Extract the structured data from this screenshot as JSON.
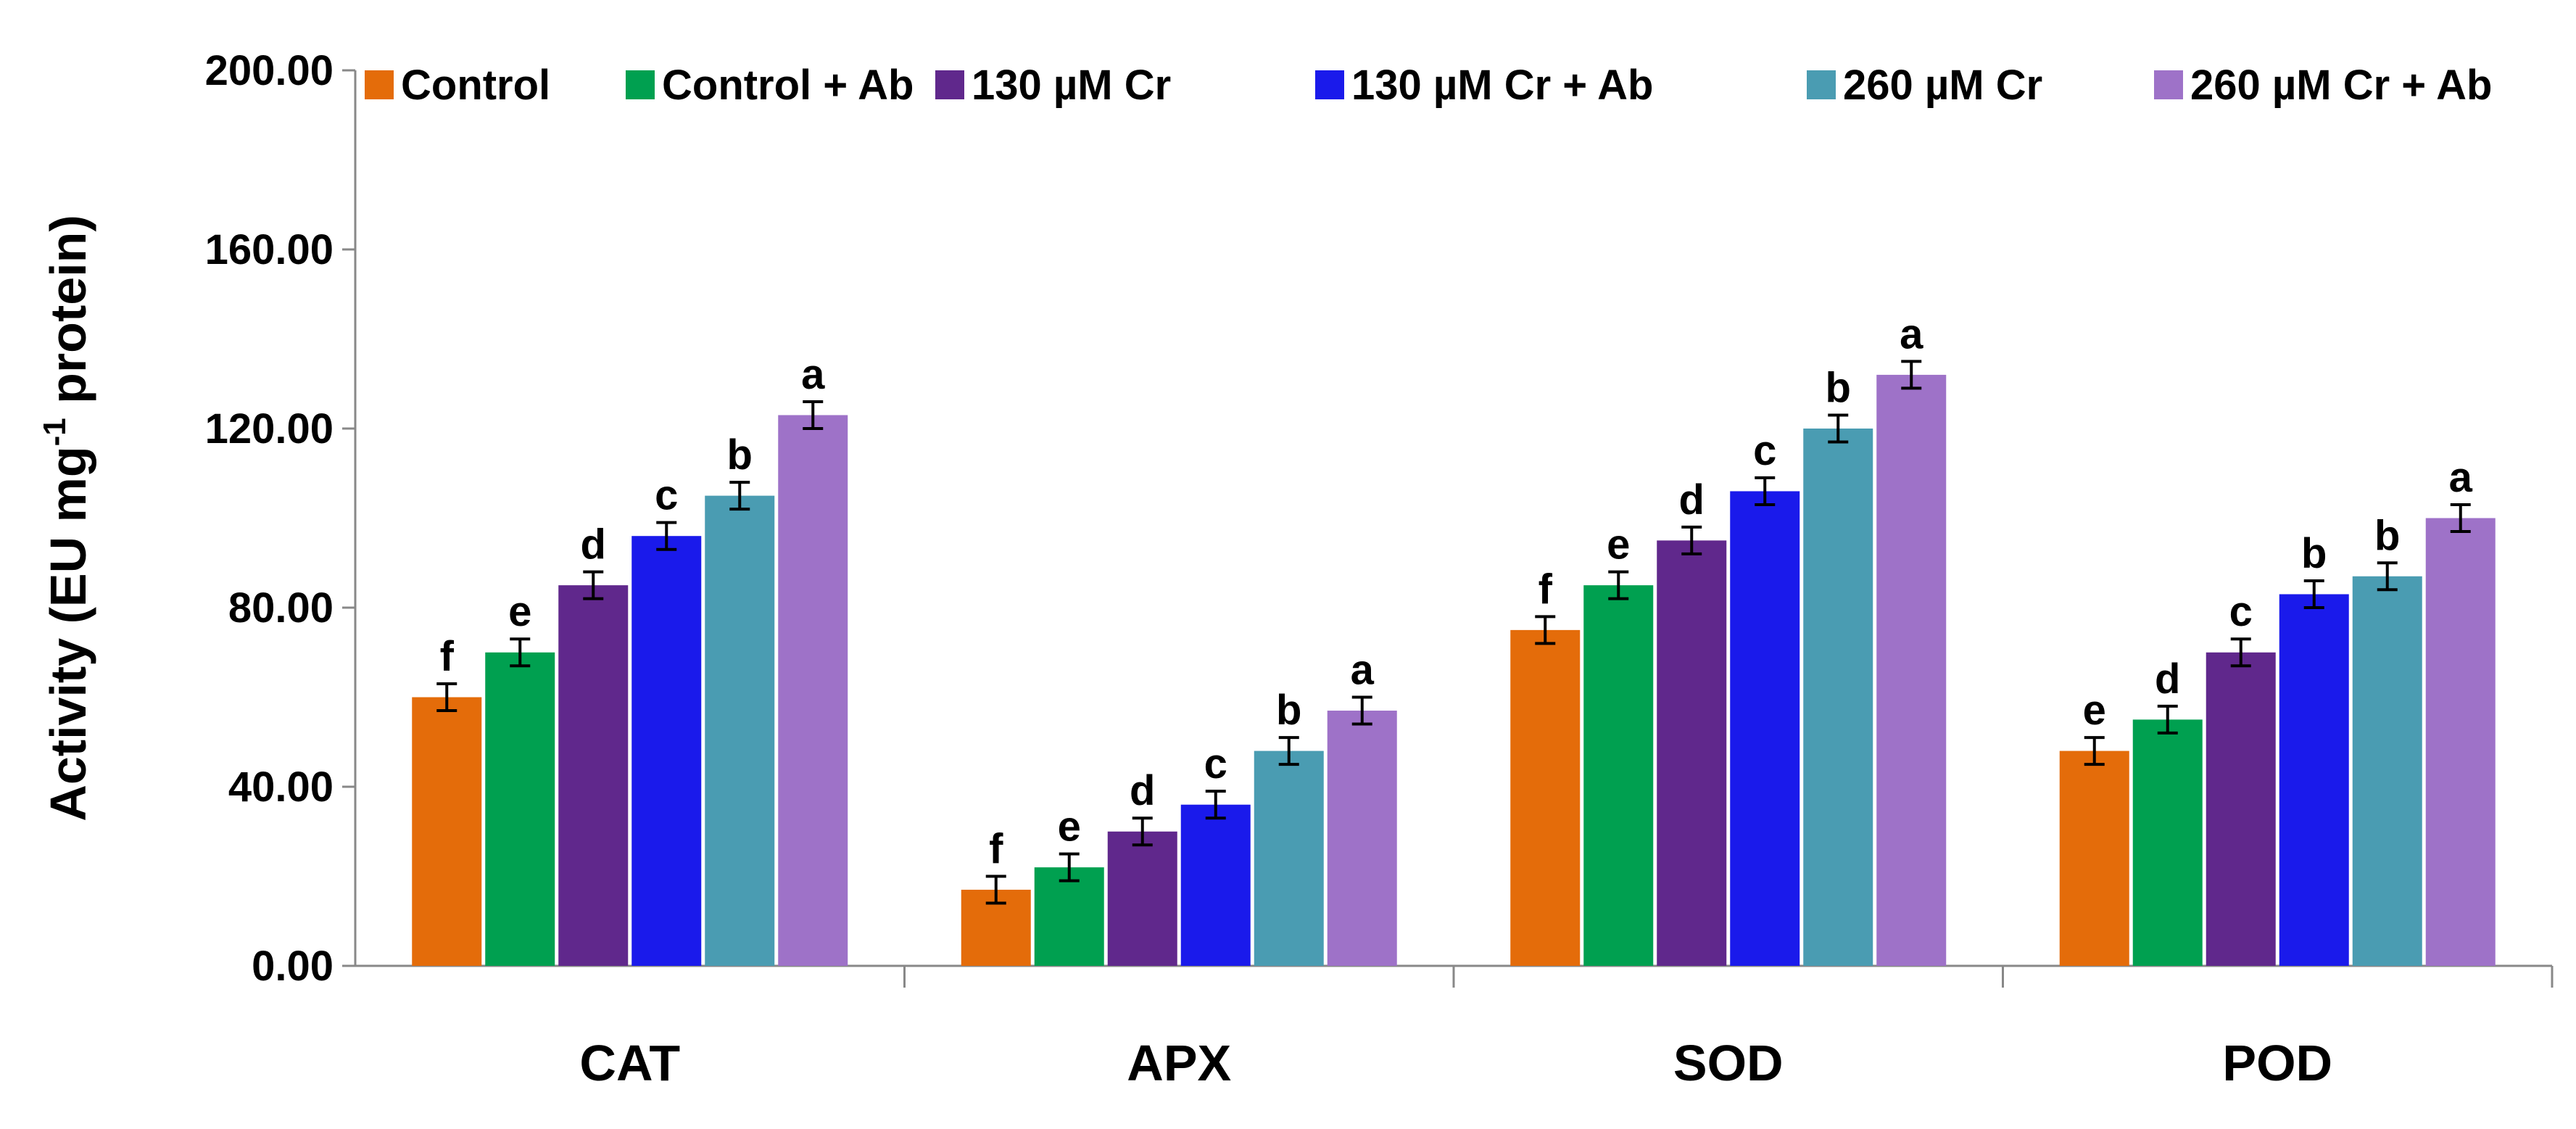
{
  "chart_data": {
    "type": "bar",
    "title": "",
    "xlabel": "",
    "ylabel": "Activity (EU mg⁻¹ protein)",
    "ylim": [
      0,
      200
    ],
    "yticks": [
      "0.00",
      "40.00",
      "80.00",
      "120.00",
      "160.00",
      "200.00"
    ],
    "grid": false,
    "legend_position": "top",
    "categories": [
      "CAT",
      "APX",
      "SOD",
      "POD"
    ],
    "series": [
      {
        "name": "Control",
        "color": "#E46C0A",
        "values": [
          60,
          17,
          75,
          48
        ],
        "errors": [
          3,
          3,
          3,
          3
        ],
        "letters": [
          "f",
          "f",
          "f",
          "e"
        ]
      },
      {
        "name": "Control + Ab",
        "color": "#00A050",
        "values": [
          70,
          22,
          85,
          55
        ],
        "errors": [
          3,
          3,
          3,
          3
        ],
        "letters": [
          "e",
          "e",
          "e",
          "d"
        ]
      },
      {
        "name": "130 µM Cr",
        "color": "#60288C",
        "values": [
          85,
          30,
          95,
          70
        ],
        "errors": [
          3,
          3,
          3,
          3
        ],
        "letters": [
          "d",
          "d",
          "d",
          "c"
        ]
      },
      {
        "name": "130 µM Cr + Ab",
        "color": "#1A1AEB",
        "values": [
          96,
          36,
          106,
          83
        ],
        "errors": [
          3,
          3,
          3,
          3
        ],
        "letters": [
          "c",
          "c",
          "c",
          "b"
        ]
      },
      {
        "name": "260 µM Cr",
        "color": "#4A9CB2",
        "values": [
          105,
          48,
          120,
          87
        ],
        "errors": [
          3,
          3,
          3,
          3
        ],
        "letters": [
          "b",
          "b",
          "b",
          "b"
        ]
      },
      {
        "name": "260 µM Cr + Ab",
        "color": "#9E72C8",
        "values": [
          123,
          57,
          132,
          100
        ],
        "errors": [
          3,
          3,
          3,
          3
        ],
        "letters": [
          "a",
          "a",
          "a",
          "a"
        ]
      }
    ]
  }
}
